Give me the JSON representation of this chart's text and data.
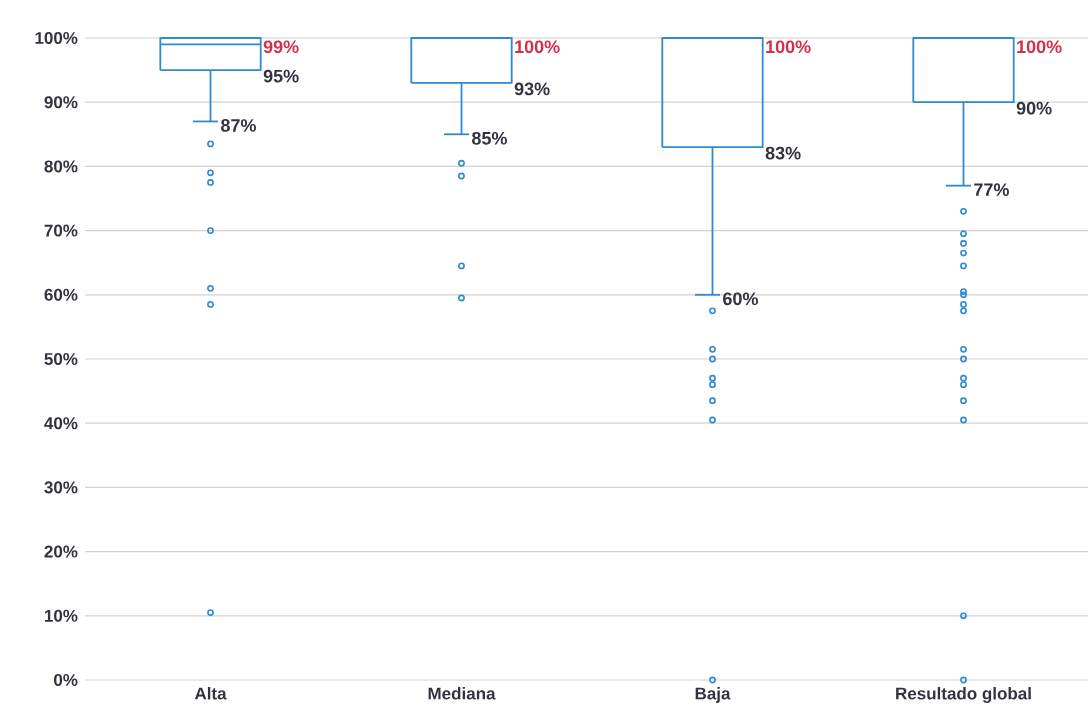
{
  "chart_data": {
    "type": "box",
    "categories": [
      "Alta",
      "Mediana",
      "Baja",
      "Resultado global"
    ],
    "color": "#2f8ad0",
    "marker": "circle",
    "grid": "y",
    "ylim": [
      0,
      100
    ],
    "yticks": [
      {
        "value": 0,
        "label": "0%"
      },
      {
        "value": 10,
        "label": "10%"
      },
      {
        "value": 20,
        "label": "20%"
      },
      {
        "value": 30,
        "label": "30%"
      },
      {
        "value": 40,
        "label": "40%"
      },
      {
        "value": 50,
        "label": "50%"
      },
      {
        "value": 60,
        "label": "60%"
      },
      {
        "value": 70,
        "label": "70%"
      },
      {
        "value": 80,
        "label": "80%"
      },
      {
        "value": 90,
        "label": "90%"
      },
      {
        "value": 100,
        "label": "100%"
      }
    ],
    "boxes": [
      {
        "low": 87,
        "q1": 95,
        "median": 99,
        "q3": 100,
        "high": 100,
        "outliers": [
          83.5,
          79,
          77.5,
          70,
          61,
          58.5,
          10.5
        ]
      },
      {
        "low": 85,
        "q1": 93,
        "median": 100,
        "q3": 100,
        "high": 100,
        "outliers": [
          80.5,
          78.5,
          64.5,
          59.5
        ]
      },
      {
        "low": 60,
        "q1": 83,
        "median": 100,
        "q3": 100,
        "high": 100,
        "outliers": [
          57.5,
          51.5,
          50,
          47,
          46,
          43.5,
          40.5,
          0
        ]
      },
      {
        "low": 77,
        "q1": 90,
        "median": 100,
        "q3": 100,
        "high": 100,
        "outliers": [
          73,
          69.5,
          68,
          66.5,
          64.5,
          60.5,
          60,
          58.5,
          57.5,
          51.5,
          50,
          47,
          46,
          43.5,
          40.5,
          10,
          0
        ]
      }
    ],
    "annotations": [
      {
        "text": "99%",
        "x": "Alta",
        "y": 99
      },
      {
        "text": "95%",
        "x": "Alta",
        "y": 95
      },
      {
        "text": "87%",
        "x": "Alta",
        "y": 87
      },
      {
        "text": "100%",
        "x": "Mediana",
        "y": 100
      },
      {
        "text": "93%",
        "x": "Mediana",
        "y": 93
      },
      {
        "text": "85%",
        "x": "Mediana",
        "y": 85
      },
      {
        "text": "100%",
        "x": "Baja",
        "y": 100
      },
      {
        "text": "83%",
        "x": "Baja",
        "y": 83
      },
      {
        "text": "60%",
        "x": "Baja",
        "y": 60
      },
      {
        "text": "100%",
        "x": "Resultado global",
        "y": 100
      },
      {
        "text": "90%",
        "x": "Resultado global",
        "y": 90
      },
      {
        "text": "77%",
        "x": "Resultado global",
        "y": 77
      }
    ]
  }
}
